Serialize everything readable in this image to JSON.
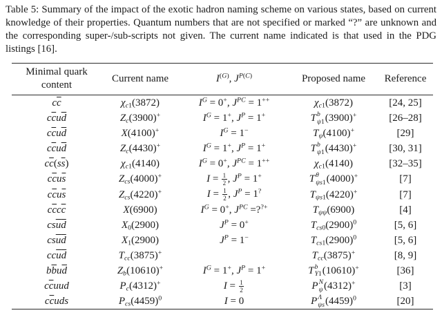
{
  "colors": {
    "background": "#ffffff",
    "text": "#1b1b1b",
    "rule": "#2a2a2a"
  },
  "caption": {
    "text": "Table 5: Summary of the impact of the exotic hadron naming scheme on various states, based on current knowledge of their properties. Quantum numbers that are not specified or marked “?” are unknown and the corresponding super-/sub-scripts not given. The current name indicated is that used in the PDG listings [16]."
  },
  "table": {
    "headers": [
      {
        "label": "Minimal quark content",
        "math": false
      },
      {
        "label": "Current name",
        "math": false
      },
      {
        "label": "I^{(G)}, J^{P(C)}",
        "math": true
      },
      {
        "label": "Proposed name",
        "math": false
      },
      {
        "label": "Reference",
        "math": false
      }
    ],
    "column_keys": [
      "quark_content",
      "current_name",
      "quantum_numbers",
      "proposed_name",
      "reference"
    ],
    "rows": [
      {
        "quark_content": "c\\bar{c}",
        "current_name": "χ_{c1}(3872)",
        "quantum_numbers": "I^{G} = 0^{+}, J^{PC} = 1^{++}",
        "proposed_name": "χ_{c1}(3872)",
        "reference": "[24, 25]"
      },
      {
        "quark_content": "c\\bar{c}u\\bar{d}",
        "current_name": "Z_{c}(3900)^{+}",
        "quantum_numbers": "I^{G} = 1^{+}, J^{P} = 1^{+}",
        "proposed_name": "T\\ss{b}{ψ1}(3900)^{+}",
        "reference": "[26–28]"
      },
      {
        "quark_content": "c\\bar{c}u\\bar{d}",
        "current_name": "X(4100)^{+}",
        "quantum_numbers": "I^{G} = 1^{−}",
        "proposed_name": "T_{ψ}(4100)^{+}",
        "reference": "[29]"
      },
      {
        "quark_content": "c\\bar{c}u\\bar{d}",
        "current_name": "Z_{c}(4430)^{+}",
        "quantum_numbers": "I^{G} = 1^{+}, J^{P} = 1^{+}",
        "proposed_name": "T\\ss{b}{ψ1}(4430)^{+}",
        "reference": "[30, 31]"
      },
      {
        "quark_content": "c\\bar{c}(s\\bar{s})",
        "current_name": "χ_{c1}(4140)",
        "quantum_numbers": "I^{G} = 0^{+}, J^{PC} = 1^{++}",
        "proposed_name": "χ_{c1}(4140)",
        "reference": "[32–35]"
      },
      {
        "quark_content": "c\\bar{c}u\\bar{s}",
        "current_name": "Z_{cs}(4000)^{+}",
        "quantum_numbers": "I = \\frac{1}{2}, J^{P} = 1^{+}",
        "proposed_name": "T\\ss{θ}{ψs1}(4000)^{+}",
        "reference": "[7]"
      },
      {
        "quark_content": "c\\bar{c}u\\bar{s}",
        "current_name": "Z_{cs}(4220)^{+}",
        "quantum_numbers": "I = \\frac{1}{2}, J^{P} = 1^{?}",
        "proposed_name": "T_{ψs1}(4220)^{+}",
        "reference": "[7]"
      },
      {
        "quark_content": "c\\bar{c}c\\bar{c}",
        "current_name": "X(6900)",
        "quantum_numbers": "I^{G} = 0^{+}, J^{PC} =?^{?+}",
        "proposed_name": "T_{ψψ}(6900)",
        "reference": "[4]"
      },
      {
        "quark_content": "cs\\bar{u}\\bar{d}",
        "current_name": "X_{0}(2900)",
        "quantum_numbers": "J^{P} = 0^{+}",
        "proposed_name": "T_{cs0}(2900)^{0}",
        "reference": "[5, 6]"
      },
      {
        "quark_content": "cs\\bar{u}\\bar{d}",
        "current_name": "X_{1}(2900)",
        "quantum_numbers": "J^{P} = 1^{−}",
        "proposed_name": "T_{cs1}(2900)^{0}",
        "reference": "[5, 6]"
      },
      {
        "quark_content": "cc\\bar{u}\\bar{d}",
        "current_name": "T_{cc}(3875)^{+}",
        "quantum_numbers": "",
        "proposed_name": "T_{cc}(3875)^{+}",
        "reference": "[8, 9]"
      },
      {
        "quark_content": "b\\bar{b}u\\bar{d}",
        "current_name": "Z_{b}(10610)^{+}",
        "quantum_numbers": "I^{G} = 1^{+}, J^{P} = 1^{+}",
        "proposed_name": "T\\ss{b}{Υ1}(10610)^{+}",
        "reference": "[36]"
      },
      {
        "quark_content": "c\\bar{c}uud",
        "current_name": "P_{c}(4312)^{+}",
        "quantum_numbers": "I = \\frac{1}{2}",
        "proposed_name": "P\\ss{N}{ψ}(4312)^{+}",
        "reference": "[3]"
      },
      {
        "quark_content": "c\\bar{c}uds",
        "current_name": "P_{cs}(4459)^{0}",
        "quantum_numbers": "I = 0",
        "proposed_name": "P\\ss{Λ}{ψs}(4459)^{0}",
        "reference": "[20]"
      }
    ]
  }
}
